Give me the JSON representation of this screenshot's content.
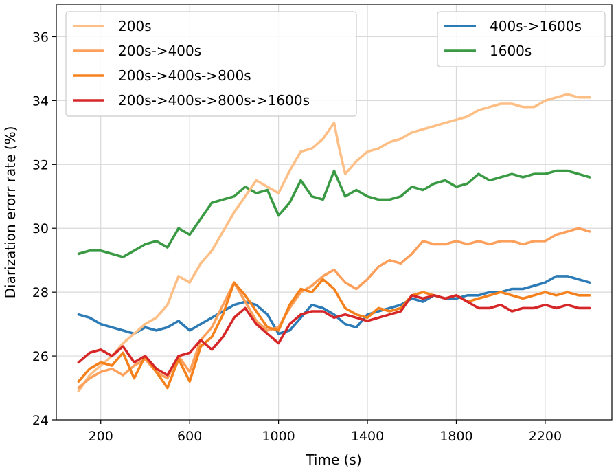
{
  "chart_data": {
    "type": "line",
    "xlabel": "Time (s)",
    "ylabel": "Diarization erorr rate (%)",
    "xlim": [
      0,
      2500
    ],
    "ylim": [
      24,
      37
    ],
    "xticks": [
      200,
      600,
      1000,
      1400,
      1800,
      2200
    ],
    "yticks": [
      24,
      26,
      28,
      30,
      32,
      34,
      36
    ],
    "grid": true,
    "legends": [
      {
        "placement": "upper-left",
        "entries": [
          "200s",
          "200s->400s",
          "200s->400s->800s",
          "200s->400s->800s->1600s"
        ]
      },
      {
        "placement": "upper-right",
        "entries": [
          "400s->1600s",
          "1600s"
        ]
      }
    ],
    "series": [
      {
        "name": "200s",
        "color": "#fdbf86",
        "x": [
          100,
          150,
          200,
          250,
          300,
          350,
          400,
          450,
          500,
          550,
          600,
          650,
          700,
          750,
          800,
          850,
          900,
          950,
          1000,
          1050,
          1100,
          1150,
          1200,
          1250,
          1270,
          1300,
          1350,
          1400,
          1450,
          1500,
          1550,
          1600,
          1650,
          1700,
          1750,
          1800,
          1850,
          1900,
          1950,
          2000,
          2050,
          2100,
          2150,
          2200,
          2250,
          2300,
          2350,
          2400
        ],
        "y": [
          24.9,
          25.4,
          25.7,
          26.0,
          26.4,
          26.7,
          27.0,
          27.2,
          27.6,
          28.5,
          28.3,
          28.9,
          29.3,
          29.9,
          30.5,
          31.0,
          31.5,
          31.3,
          31.1,
          31.8,
          32.4,
          32.5,
          32.8,
          33.3,
          32.6,
          31.7,
          32.1,
          32.4,
          32.5,
          32.7,
          32.8,
          33.0,
          33.1,
          33.2,
          33.3,
          33.4,
          33.5,
          33.7,
          33.8,
          33.9,
          33.9,
          33.8,
          33.8,
          34.0,
          34.1,
          34.2,
          34.1,
          34.1
        ]
      },
      {
        "name": "200s->400s",
        "color": "#fda05c",
        "x": [
          100,
          150,
          200,
          250,
          300,
          350,
          400,
          450,
          500,
          550,
          600,
          650,
          700,
          750,
          800,
          850,
          900,
          950,
          1000,
          1050,
          1100,
          1150,
          1200,
          1250,
          1300,
          1350,
          1400,
          1450,
          1500,
          1550,
          1600,
          1650,
          1700,
          1750,
          1800,
          1850,
          1900,
          1950,
          2000,
          2050,
          2100,
          2150,
          2200,
          2250,
          2300,
          2350,
          2400
        ],
        "y": [
          25.0,
          25.3,
          25.5,
          25.6,
          25.4,
          25.7,
          25.9,
          25.5,
          25.3,
          26.0,
          25.5,
          26.5,
          26.9,
          27.6,
          28.3,
          27.7,
          27.1,
          26.8,
          26.9,
          27.5,
          28.0,
          28.2,
          28.5,
          28.7,
          28.3,
          28.1,
          28.4,
          28.8,
          29.0,
          28.9,
          29.2,
          29.6,
          29.5,
          29.5,
          29.6,
          29.5,
          29.6,
          29.5,
          29.6,
          29.6,
          29.5,
          29.6,
          29.6,
          29.8,
          29.9,
          30.0,
          29.9
        ]
      },
      {
        "name": "200s->400s->800s",
        "color": "#f5811d",
        "x": [
          100,
          150,
          200,
          250,
          300,
          350,
          400,
          450,
          500,
          550,
          600,
          650,
          700,
          750,
          800,
          850,
          900,
          950,
          1000,
          1050,
          1100,
          1150,
          1200,
          1250,
          1300,
          1350,
          1400,
          1450,
          1500,
          1550,
          1600,
          1650,
          1700,
          1750,
          1800,
          1850,
          1900,
          1950,
          2000,
          2050,
          2100,
          2150,
          2200,
          2250,
          2300,
          2350,
          2400
        ],
        "y": [
          25.2,
          25.6,
          25.8,
          25.7,
          26.1,
          25.3,
          26.0,
          25.5,
          25.0,
          25.9,
          25.2,
          26.3,
          26.6,
          27.3,
          28.3,
          27.9,
          27.4,
          26.9,
          26.8,
          27.6,
          28.1,
          28.0,
          28.4,
          28.1,
          27.5,
          27.3,
          27.2,
          27.5,
          27.4,
          27.5,
          27.9,
          28.0,
          27.9,
          27.8,
          27.9,
          27.7,
          27.8,
          27.9,
          28.0,
          27.9,
          27.8,
          27.9,
          28.0,
          27.9,
          28.0,
          27.9,
          27.9
        ]
      },
      {
        "name": "200s->400s->800s->1600s",
        "color": "#d62728",
        "x": [
          100,
          150,
          200,
          250,
          300,
          350,
          400,
          450,
          500,
          550,
          600,
          650,
          700,
          750,
          800,
          850,
          900,
          950,
          1000,
          1050,
          1100,
          1150,
          1200,
          1250,
          1300,
          1350,
          1400,
          1450,
          1500,
          1550,
          1600,
          1650,
          1700,
          1750,
          1800,
          1850,
          1900,
          1950,
          2000,
          2050,
          2100,
          2150,
          2200,
          2250,
          2300,
          2350,
          2400
        ],
        "y": [
          25.8,
          26.1,
          26.2,
          26.0,
          26.3,
          25.8,
          26.0,
          25.6,
          25.4,
          26.0,
          26.1,
          26.5,
          26.2,
          26.6,
          27.2,
          27.5,
          27.0,
          26.7,
          26.4,
          27.0,
          27.3,
          27.4,
          27.4,
          27.2,
          27.3,
          27.2,
          27.1,
          27.2,
          27.3,
          27.4,
          27.9,
          27.8,
          27.9,
          27.8,
          27.9,
          27.7,
          27.5,
          27.5,
          27.6,
          27.4,
          27.5,
          27.5,
          27.6,
          27.5,
          27.6,
          27.5,
          27.5
        ]
      },
      {
        "name": "400s->1600s",
        "color": "#2c7bb6",
        "x": [
          100,
          150,
          200,
          250,
          300,
          350,
          400,
          450,
          500,
          550,
          600,
          650,
          700,
          750,
          800,
          850,
          900,
          950,
          1000,
          1050,
          1100,
          1150,
          1200,
          1250,
          1300,
          1350,
          1400,
          1450,
          1500,
          1550,
          1600,
          1650,
          1700,
          1750,
          1800,
          1850,
          1900,
          1950,
          2000,
          2050,
          2100,
          2150,
          2200,
          2250,
          2300,
          2350,
          2400
        ],
        "y": [
          27.3,
          27.2,
          27.0,
          26.9,
          26.8,
          26.7,
          26.9,
          26.8,
          26.9,
          27.1,
          26.8,
          27.0,
          27.2,
          27.4,
          27.6,
          27.7,
          27.6,
          27.3,
          26.7,
          26.8,
          27.2,
          27.6,
          27.5,
          27.3,
          27.0,
          26.9,
          27.3,
          27.4,
          27.5,
          27.6,
          27.8,
          27.7,
          27.9,
          27.8,
          27.8,
          27.9,
          27.9,
          28.0,
          28.0,
          28.1,
          28.1,
          28.2,
          28.3,
          28.5,
          28.5,
          28.4,
          28.3
        ]
      },
      {
        "name": "1600s",
        "color": "#3a9a44",
        "x": [
          100,
          150,
          200,
          250,
          300,
          350,
          400,
          450,
          500,
          550,
          600,
          650,
          700,
          750,
          800,
          850,
          900,
          950,
          1000,
          1050,
          1100,
          1150,
          1200,
          1250,
          1300,
          1350,
          1400,
          1450,
          1500,
          1550,
          1600,
          1650,
          1700,
          1750,
          1800,
          1850,
          1900,
          1950,
          2000,
          2050,
          2100,
          2150,
          2200,
          2250,
          2300,
          2350,
          2400
        ],
        "y": [
          29.2,
          29.3,
          29.3,
          29.2,
          29.1,
          29.3,
          29.5,
          29.6,
          29.4,
          30.0,
          29.8,
          30.3,
          30.8,
          30.9,
          31.0,
          31.3,
          31.1,
          31.2,
          30.4,
          30.8,
          31.5,
          31.0,
          30.9,
          31.8,
          31.0,
          31.2,
          31.0,
          30.9,
          30.9,
          31.0,
          31.3,
          31.2,
          31.4,
          31.5,
          31.3,
          31.4,
          31.7,
          31.5,
          31.6,
          31.7,
          31.6,
          31.7,
          31.7,
          31.8,
          31.8,
          31.7,
          31.6
        ]
      }
    ]
  }
}
